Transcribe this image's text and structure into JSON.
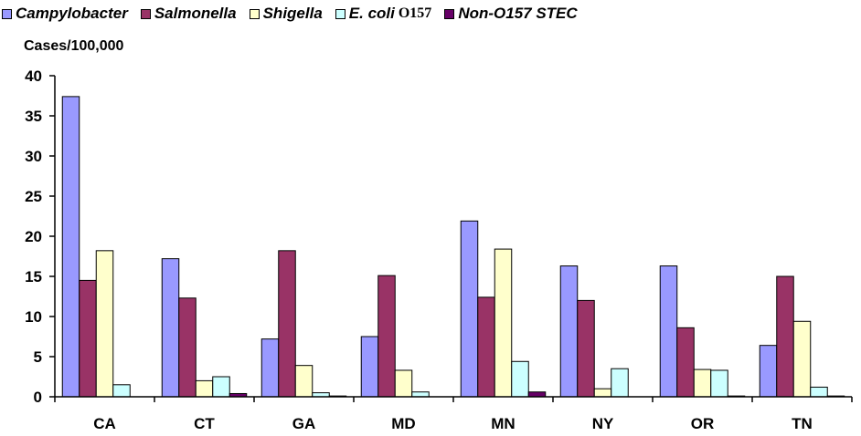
{
  "chart_data": {
    "type": "bar",
    "ylabel": "Cases/100,000",
    "ylim": [
      0,
      40
    ],
    "yticks": [
      0,
      5,
      10,
      15,
      20,
      25,
      30,
      35,
      40
    ],
    "grid": false,
    "legend_position": "top",
    "categories": [
      "CA",
      "CT",
      "GA",
      "MD",
      "MN",
      "NY",
      "OR",
      "TN"
    ],
    "series": [
      {
        "name": "Campylobacter",
        "name_suffix": "",
        "color": "#9999ff",
        "values": [
          37.4,
          17.2,
          7.2,
          7.5,
          21.9,
          16.3,
          16.3,
          6.4
        ]
      },
      {
        "name": "Salmonella",
        "name_suffix": "",
        "color": "#993366",
        "values": [
          14.5,
          12.3,
          18.2,
          15.1,
          12.4,
          12.0,
          8.6,
          15.0
        ]
      },
      {
        "name": "Shigella",
        "name_suffix": "",
        "color": "#ffffcc",
        "values": [
          18.2,
          2.0,
          3.9,
          3.3,
          18.4,
          1.0,
          3.4,
          9.4
        ]
      },
      {
        "name": "E. coli",
        "name_suffix": "O157",
        "color": "#ccffff",
        "values": [
          1.5,
          2.5,
          0.5,
          0.6,
          4.4,
          3.5,
          3.3,
          1.2
        ]
      },
      {
        "name": "Non-O157 STEC",
        "name_suffix": "",
        "color": "#660066",
        "values": [
          0.0,
          0.4,
          0.1,
          0.0,
          0.6,
          0.0,
          0.1,
          0.1
        ]
      }
    ]
  }
}
